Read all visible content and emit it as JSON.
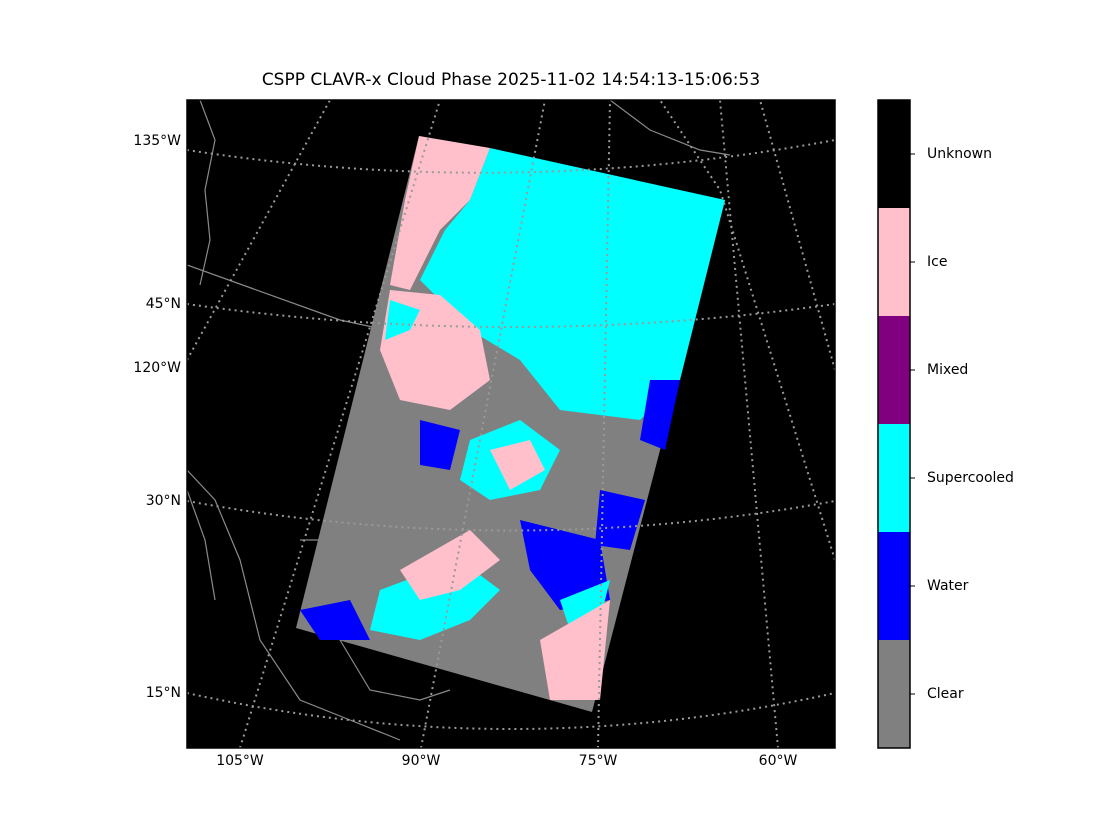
{
  "title": "CSPP CLAVR-x Cloud Phase 2025-11-02 14:54:13-15:06:53",
  "map": {
    "left_labels": [
      "135°W",
      "45°N",
      "120°W",
      "30°N",
      "15°N"
    ],
    "bottom_labels": [
      "105°W",
      "90°W",
      "75°W",
      "60°W"
    ]
  },
  "colorbar": {
    "classes": [
      {
        "name": "Clear",
        "color": "#808080"
      },
      {
        "name": "Water",
        "color": "#0000ff"
      },
      {
        "name": "Supercooled",
        "color": "#00ffff"
      },
      {
        "name": "Mixed",
        "color": "#800080"
      },
      {
        "name": "Ice",
        "color": "#ffc0cb"
      },
      {
        "name": "Unknown",
        "color": "#000000"
      }
    ]
  }
}
